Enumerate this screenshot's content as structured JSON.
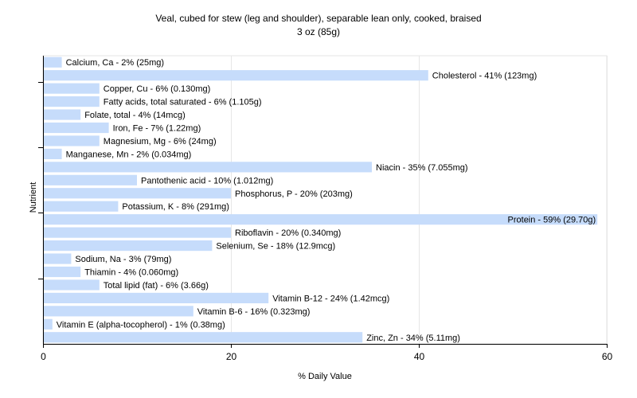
{
  "chart_data": {
    "type": "bar",
    "orientation": "horizontal",
    "title": "Veal, cubed for stew (leg and shoulder), separable lean only, cooked, braised",
    "subtitle": "3 oz (85g)",
    "xlabel": "% Daily Value",
    "ylabel": "Nutrient",
    "xlim": [
      0,
      60
    ],
    "xticks": [
      0,
      20,
      40,
      60
    ],
    "grid": true,
    "bar_color": "#c6dcfb",
    "categories": [
      "Calcium, Ca",
      "Cholesterol",
      "Copper, Cu",
      "Fatty acids, total saturated",
      "Folate, total",
      "Iron, Fe",
      "Magnesium, Mg",
      "Manganese, Mn",
      "Niacin",
      "Pantothenic acid",
      "Phosphorus, P",
      "Potassium, K",
      "Protein",
      "Riboflavin",
      "Selenium, Se",
      "Sodium, Na",
      "Thiamin",
      "Total lipid (fat)",
      "Vitamin B-12",
      "Vitamin B-6",
      "Vitamin E (alpha-tocopherol)",
      "Zinc, Zn"
    ],
    "values": [
      2,
      41,
      6,
      6,
      4,
      7,
      6,
      2,
      35,
      10,
      20,
      8,
      59,
      20,
      18,
      3,
      4,
      6,
      24,
      16,
      1,
      34
    ],
    "labels": [
      "Calcium, Ca - 2% (25mg)",
      "Cholesterol - 41% (123mg)",
      "Copper, Cu - 6% (0.130mg)",
      "Fatty acids, total saturated - 6% (1.105g)",
      "Folate, total - 4% (14mcg)",
      "Iron, Fe - 7% (1.22mg)",
      "Magnesium, Mg - 6% (24mg)",
      "Manganese, Mn - 2% (0.034mg)",
      "Niacin - 35% (7.055mg)",
      "Pantothenic acid - 10% (1.012mg)",
      "Phosphorus, P - 20% (203mg)",
      "Potassium, K - 8% (291mg)",
      "Protein - 59% (29.70g)",
      "Riboflavin - 20% (0.340mg)",
      "Selenium, Se - 18% (12.9mcg)",
      "Sodium, Na - 3% (79mg)",
      "Thiamin - 4% (0.060mg)",
      "Total lipid (fat) - 6% (3.66g)",
      "Vitamin B-12 - 24% (1.42mcg)",
      "Vitamin B-6 - 16% (0.323mg)",
      "Vitamin E (alpha-tocopherol) - 1% (0.38mg)",
      "Zinc, Zn - 34% (5.11mg)"
    ]
  }
}
